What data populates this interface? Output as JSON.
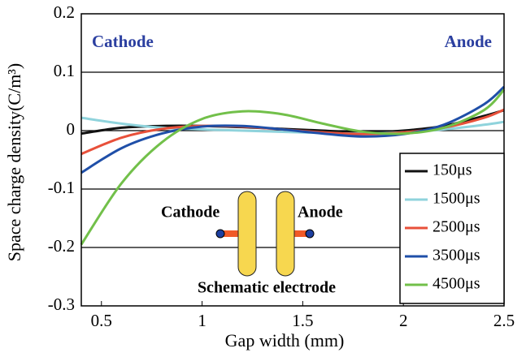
{
  "chart_data": {
    "type": "line",
    "x_label": "Gap width  (mm)",
    "y_label": "Space charge density(C/m³)",
    "annotations": [
      "Cathode",
      "Anode",
      "Cathode",
      "Anode",
      "Schematic electrode"
    ],
    "xlim": [
      0.4,
      2.5
    ],
    "xticks": [
      0.5,
      1,
      1.5,
      2,
      2.5
    ],
    "ylim": [
      -0.3,
      0.2
    ],
    "yticks": [
      0.2,
      0.1,
      0,
      -0.1,
      -0.2,
      -0.3
    ],
    "grid": true,
    "legend": "lower right",
    "x": [
      0.4,
      0.6,
      0.8,
      1.0,
      1.2,
      1.4,
      1.6,
      1.8,
      2.0,
      2.2,
      2.4,
      2.5
    ],
    "series": [
      {
        "name": "150μs",
        "color": "#111111",
        "values": [
          -0.005,
          0.005,
          0.008,
          0.008,
          0.006,
          0.003,
          0,
          -0.003,
          0,
          0.008,
          0.025,
          0.035
        ]
      },
      {
        "name": "1500μs",
        "color": "#8fd3dc",
        "values": [
          0.022,
          0.012,
          0.005,
          0.002,
          0,
          -0.002,
          -0.004,
          -0.005,
          -0.003,
          0.002,
          0.01,
          0.015
        ]
      },
      {
        "name": "2500μs",
        "color": "#e8503a",
        "values": [
          -0.04,
          -0.012,
          0.003,
          0.008,
          0.007,
          0.002,
          -0.003,
          -0.006,
          -0.003,
          0.005,
          0.022,
          0.036
        ]
      },
      {
        "name": "3500μs",
        "color": "#1f4fa8",
        "values": [
          -0.072,
          -0.03,
          -0.005,
          0.007,
          0.008,
          0.002,
          -0.005,
          -0.01,
          -0.006,
          0.01,
          0.045,
          0.075
        ]
      },
      {
        "name": "4500μs",
        "color": "#72c04a",
        "values": [
          -0.195,
          -0.09,
          -0.02,
          0.02,
          0.033,
          0.028,
          0.012,
          -0.002,
          -0.005,
          0.005,
          0.035,
          0.07
        ]
      }
    ]
  }
}
